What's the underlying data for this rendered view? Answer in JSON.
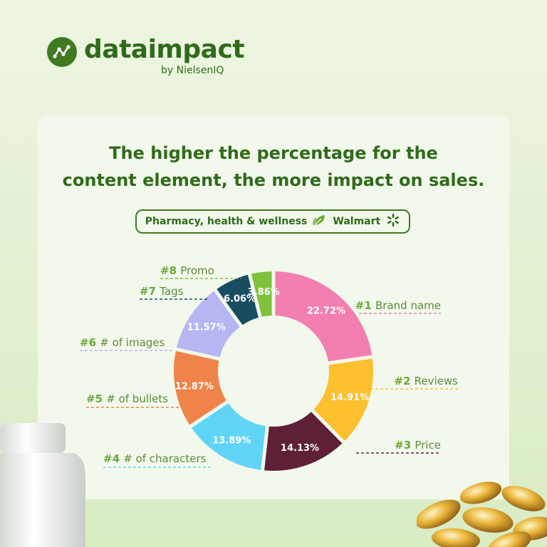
{
  "brand": {
    "name": "dataimpact",
    "sub": "by NielsenIQ",
    "logo_icon": "line-chart-icon"
  },
  "headline": {
    "line1": "The higher the percentage for the",
    "line2": "content element, the more impact on sales."
  },
  "category": {
    "label": "Pharmacy, health & wellness",
    "retailer": "Walmart",
    "leaf_icon": "leaf-icon",
    "spark_icon": "walmart-spark-icon"
  },
  "chart_data": {
    "type": "pie",
    "title": "",
    "slices": [
      {
        "rank": "#1",
        "name": "Brand name",
        "value": 22.72,
        "value_label": "22.72%",
        "color": "#f27faf"
      },
      {
        "rank": "#2",
        "name": "Reviews",
        "value": 14.91,
        "value_label": "14.91%",
        "color": "#fcbf2e"
      },
      {
        "rank": "#3",
        "name": "Price",
        "value": 14.13,
        "value_label": "14.13%",
        "color": "#5e1f37"
      },
      {
        "rank": "#4",
        "name": "# of characters",
        "value": 13.89,
        "value_label": "13.89%",
        "color": "#5fd4f7"
      },
      {
        "rank": "#5",
        "name": "# of bullets",
        "value": 12.87,
        "value_label": "12.87%",
        "color": "#f08347"
      },
      {
        "rank": "#6",
        "name": "# of images",
        "value": 11.57,
        "value_label": "11.57%",
        "color": "#b6b6f2"
      },
      {
        "rank": "#7",
        "name": "Tags",
        "value": 6.06,
        "value_label": "6.06%",
        "color": "#184d61"
      },
      {
        "rank": "#8",
        "name": "Promo",
        "value": 3.86,
        "value_label": "3.86%",
        "color": "#7ec13b"
      }
    ]
  }
}
